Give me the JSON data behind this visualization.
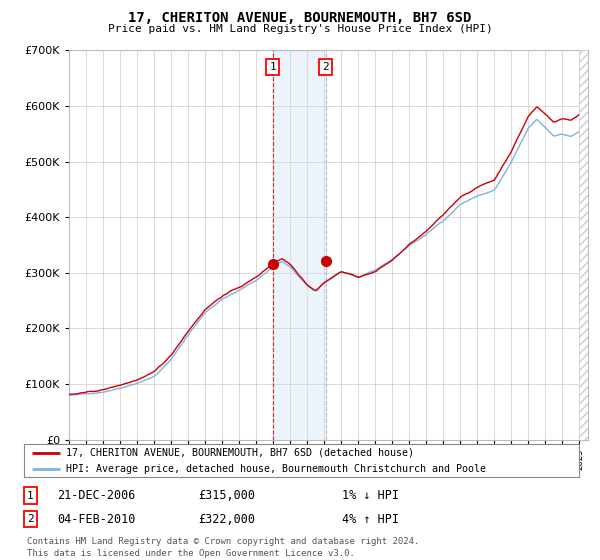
{
  "title": "17, CHERITON AVENUE, BOURNEMOUTH, BH7 6SD",
  "subtitle": "Price paid vs. HM Land Registry's House Price Index (HPI)",
  "legend_line1": "17, CHERITON AVENUE, BOURNEMOUTH, BH7 6SD (detached house)",
  "legend_line2": "HPI: Average price, detached house, Bournemouth Christchurch and Poole",
  "annotation1_date": "21-DEC-2006",
  "annotation1_price": "£315,000",
  "annotation1_hpi": "1% ↓ HPI",
  "annotation2_date": "04-FEB-2010",
  "annotation2_price": "£322,000",
  "annotation2_hpi": "4% ↑ HPI",
  "footnote1": "Contains HM Land Registry data © Crown copyright and database right 2024.",
  "footnote2": "This data is licensed under the Open Government Licence v3.0.",
  "sale1_x": 2006.97,
  "sale1_y": 315000,
  "sale2_x": 2010.09,
  "sale2_y": 322000,
  "ylim": [
    0,
    700000
  ],
  "xlim_start": 1995.0,
  "xlim_end": 2025.5,
  "grid_color": "#cccccc",
  "hpi_color": "#7fb3e0",
  "price_color": "#cc0000",
  "shade_color": "#ccddf5",
  "background_color": "#ffffff"
}
